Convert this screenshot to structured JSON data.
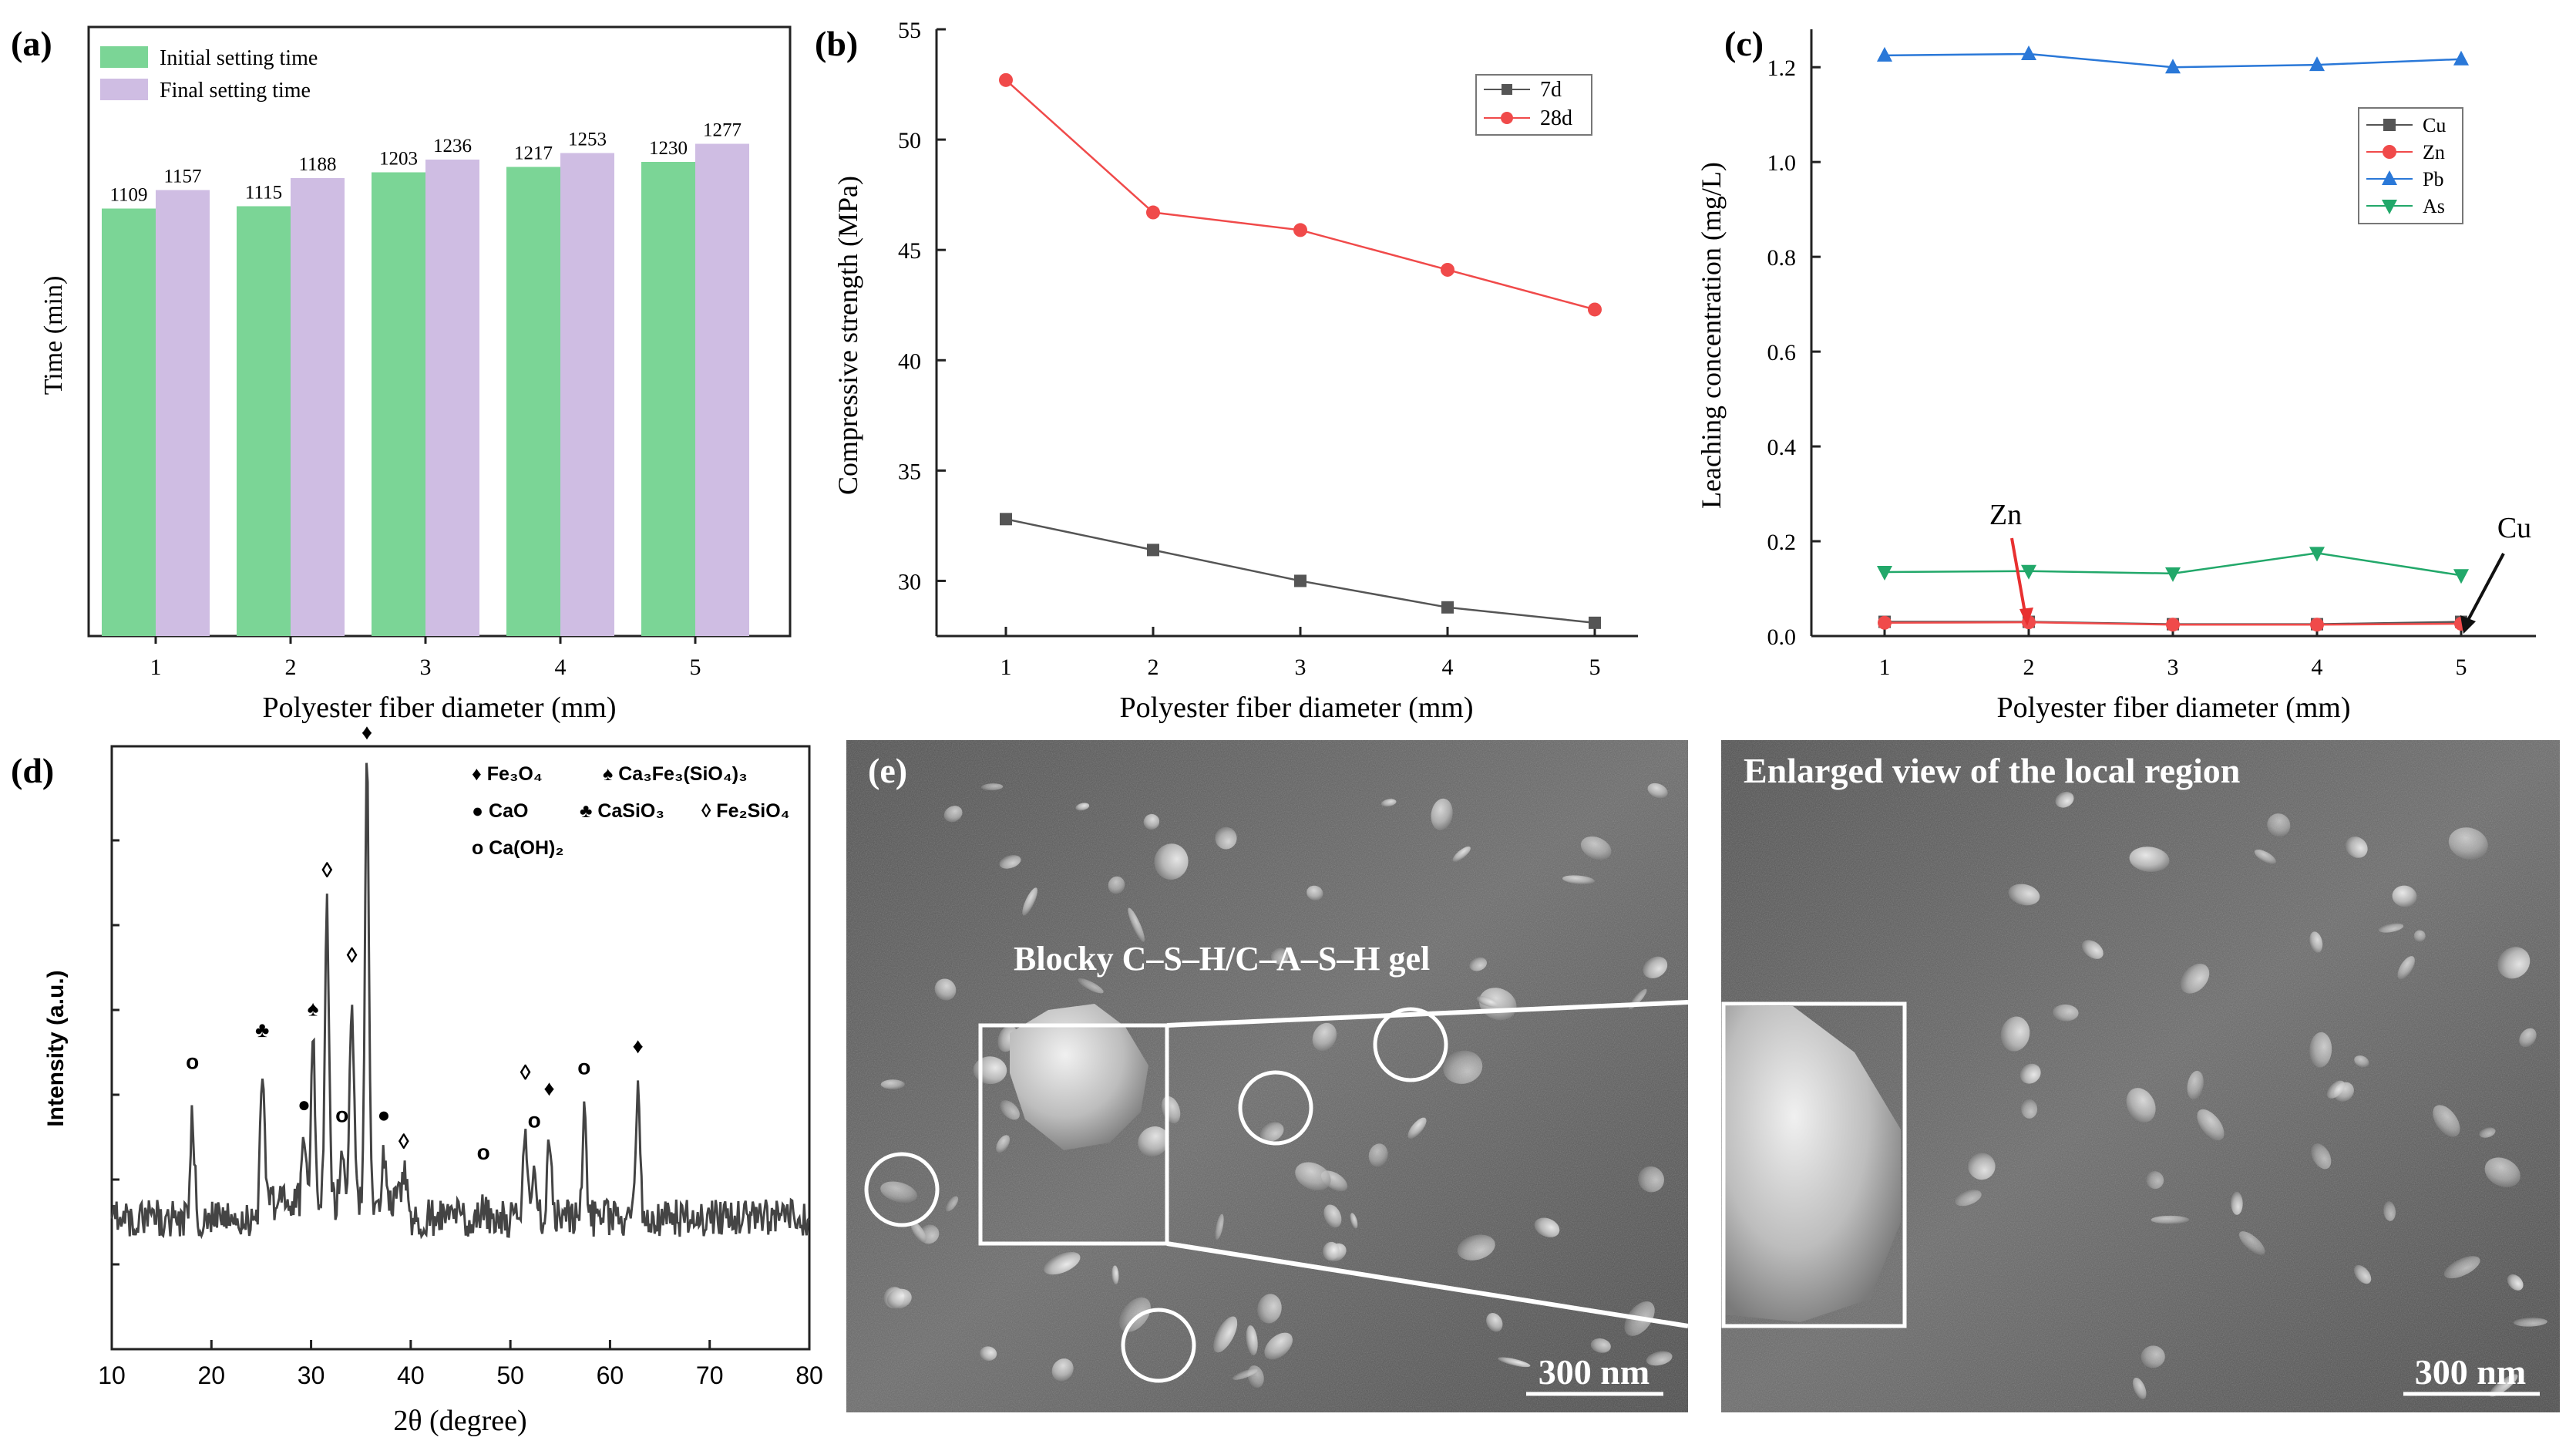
{
  "panel_labels": {
    "a": "(a)",
    "b": "(b)",
    "c": "(c)",
    "d": "(d)",
    "e": "(e)"
  },
  "colors": {
    "initial": "#7bd596",
    "final": "#cfbde3",
    "d7": "#555555",
    "d28": "#f04a4a",
    "cu": "#555555",
    "zn": "#f04a4a",
    "pb": "#2a78d8",
    "as": "#22a86a",
    "xrd": "#444444",
    "sem_bg": "#5c5c5c"
  },
  "chart_data": [
    {
      "id": "a",
      "type": "bar",
      "xlabel": "Polyester fiber diameter (mm)",
      "ylabel": "Time (min)",
      "categories": [
        "1",
        "2",
        "3",
        "4",
        "5"
      ],
      "ylim": [
        0,
        1300
      ],
      "series": [
        {
          "name": "Initial setting time",
          "values": [
            1109,
            1115,
            1203,
            1217,
            1230
          ],
          "labels": [
            "1109",
            "1115",
            "1203",
            "1217",
            "1230"
          ]
        },
        {
          "name": "Final setting time",
          "values": [
            1157,
            1188,
            1236,
            1253,
            1277
          ],
          "labels": [
            "1157",
            "1188",
            "1236",
            "1253",
            "1277"
          ]
        }
      ]
    },
    {
      "id": "b",
      "type": "line",
      "xlabel": "Polyester fiber diameter (mm)",
      "ylabel": "Compressive strength (MPa)",
      "x": [
        1,
        2,
        3,
        4,
        5
      ],
      "xticks": [
        "1",
        "2",
        "3",
        "4",
        "5"
      ],
      "ylim": [
        27.5,
        55
      ],
      "yticks": [
        "30",
        "35",
        "40",
        "45",
        "50",
        "55"
      ],
      "series": [
        {
          "name": "7d",
          "values": [
            32.8,
            31.4,
            30.0,
            28.8,
            28.1
          ]
        },
        {
          "name": "28d",
          "values": [
            52.7,
            46.7,
            45.9,
            44.1,
            42.3
          ]
        }
      ]
    },
    {
      "id": "c",
      "type": "line",
      "xlabel": "Polyester fiber diameter (mm)",
      "ylabel": "Leaching concentration (mg/L)",
      "x": [
        1,
        2,
        3,
        4,
        5
      ],
      "xticks": [
        "1",
        "2",
        "3",
        "4",
        "5"
      ],
      "ylim": [
        0,
        1.28
      ],
      "yticks": [
        "0.0",
        "0.2",
        "0.4",
        "0.6",
        "0.8",
        "1.0",
        "1.2"
      ],
      "series": [
        {
          "name": "Cu",
          "values": [
            0.03,
            0.03,
            0.025,
            0.025,
            0.03
          ]
        },
        {
          "name": "Zn",
          "values": [
            0.028,
            0.029,
            0.024,
            0.024,
            0.026
          ]
        },
        {
          "name": "Pb",
          "values": [
            1.225,
            1.228,
            1.2,
            1.205,
            1.217
          ]
        },
        {
          "name": "As",
          "values": [
            0.135,
            0.137,
            0.132,
            0.175,
            0.128
          ]
        }
      ],
      "annotations": [
        "Zn",
        "Cu"
      ]
    },
    {
      "id": "d",
      "type": "line",
      "xlabel": "2θ (degree)",
      "ylabel": "Intensity (a.u.)",
      "xlim": [
        10,
        80
      ],
      "xticks": [
        "10",
        "20",
        "30",
        "40",
        "50",
        "60",
        "70",
        "80"
      ],
      "peaks": [
        {
          "x": 18.1,
          "h": 0.2,
          "marker": "o"
        },
        {
          "x": 25.1,
          "h": 0.26,
          "marker": "♣"
        },
        {
          "x": 29.3,
          "h": 0.12,
          "marker": "●"
        },
        {
          "x": 30.2,
          "h": 0.3,
          "marker": "♠"
        },
        {
          "x": 31.6,
          "h": 0.56,
          "marker": "◊"
        },
        {
          "x": 33.1,
          "h": 0.1,
          "marker": "o"
        },
        {
          "x": 34.1,
          "h": 0.4,
          "marker": "◊"
        },
        {
          "x": 35.6,
          "h": 0.82,
          "marker": "♦"
        },
        {
          "x": 37.3,
          "h": 0.1,
          "marker": "●"
        },
        {
          "x": 39.3,
          "h": 0.05,
          "marker": "◊"
        },
        {
          "x": 47.3,
          "h": 0.03,
          "marker": "o"
        },
        {
          "x": 51.5,
          "h": 0.18,
          "marker": "◊"
        },
        {
          "x": 52.4,
          "h": 0.09,
          "marker": "o"
        },
        {
          "x": 53.9,
          "h": 0.15,
          "marker": "♦"
        },
        {
          "x": 57.4,
          "h": 0.19,
          "marker": "o"
        },
        {
          "x": 62.8,
          "h": 0.23,
          "marker": "♦"
        }
      ]
    }
  ],
  "legend_d": {
    "fe3o4": "♦ Fe₃O₄",
    "ca3fe": "♠ Ca₃Fe₃(SiO₄)₃",
    "cao": "● CaO",
    "casio3": "♣ CaSiO₃",
    "fe2sio4": "◊ Fe₂SiO₄",
    "caoh2": "o Ca(OH)₂"
  },
  "sem": {
    "gel_label": "Blocky C–S–H/C–A–S–H gel",
    "enlarged_title": "Enlarged view of the local region",
    "scale_left": "300 nm",
    "scale_right": "300 nm"
  }
}
